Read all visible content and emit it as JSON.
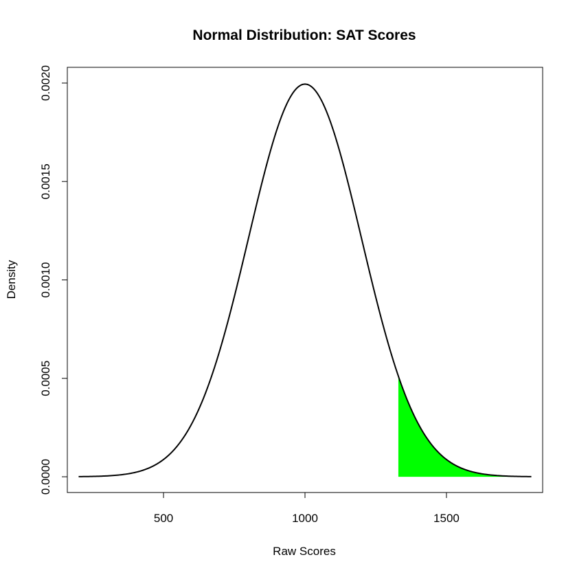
{
  "chart_data": {
    "type": "area",
    "title": "Normal Distribution: SAT Scores",
    "xlabel": "Raw Scores",
    "ylabel": "Density",
    "distribution": {
      "kind": "normal",
      "mean": 1000,
      "sd": 200
    },
    "x_range": [
      200,
      1800
    ],
    "xlim": [
      160,
      1840
    ],
    "ylim": [
      -8e-05,
      0.00208
    ],
    "x_ticks": [
      500,
      1000,
      1500
    ],
    "x_tick_labels": [
      "500",
      "1000",
      "1500"
    ],
    "y_ticks": [
      0,
      0.0005,
      0.001,
      0.0015,
      0.002
    ],
    "y_tick_labels": [
      "0.0000",
      "0.0005",
      "0.0010",
      "0.0015",
      "0.0020"
    ],
    "shaded_region": {
      "from": 1330,
      "to": 1800,
      "color": "#00ff00"
    },
    "curve_color": "#000000",
    "grid": false,
    "legend": "none"
  }
}
